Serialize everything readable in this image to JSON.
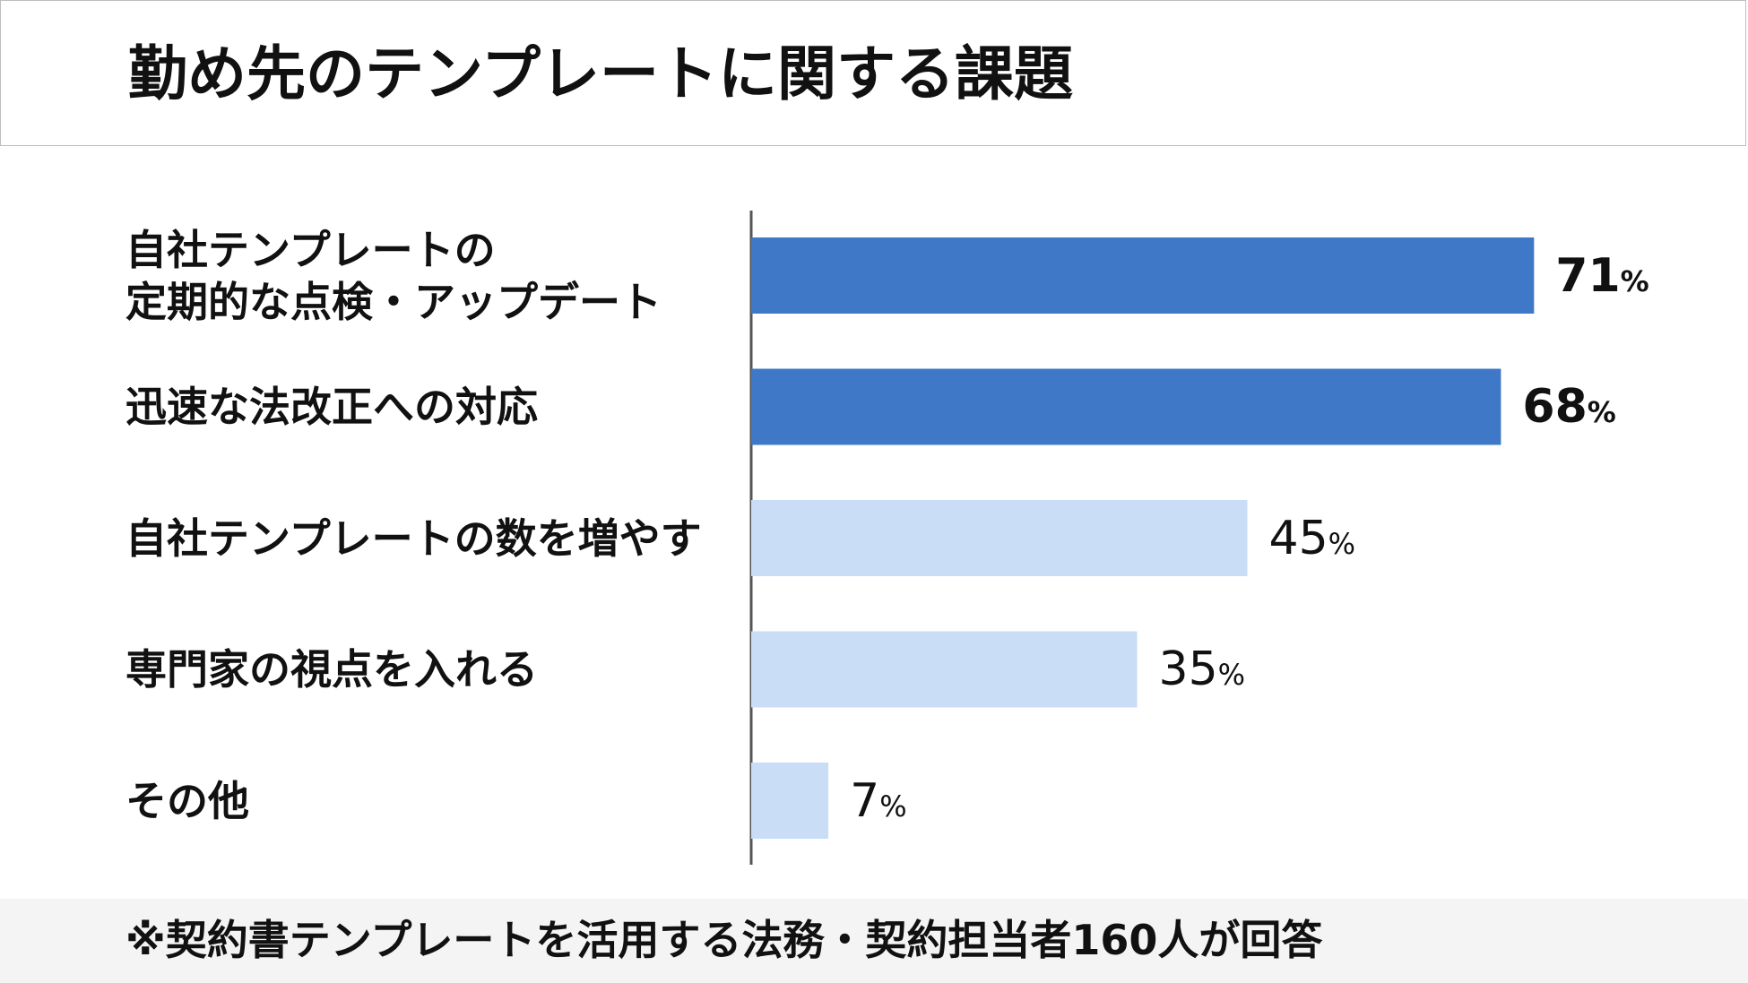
{
  "title": "勤め先のテンプレートに関する課題",
  "footnote": "※契約書テンプレートを活用する法務・契約担当者160人が回答",
  "percent_unit": "%",
  "colors": {
    "highlight": "#3e78c6",
    "normal": "#c9ddf7",
    "axis": "#555555"
  },
  "chart_data": {
    "type": "bar",
    "orientation": "horizontal",
    "title": "勤め先のテンプレートに関する課題",
    "categories": [
      "自社テンプレートの\n定期的な点検・アップデート",
      "迅速な法改正への対応",
      "自社テンプレートの数を増やす",
      "専門家の視点を入れる",
      "その他"
    ],
    "values": [
      71,
      68,
      45,
      35,
      7
    ],
    "highlighted": [
      true,
      true,
      false,
      false,
      false
    ],
    "unit": "%",
    "xlim": [
      0,
      100
    ],
    "grid": false,
    "legend": "none"
  }
}
